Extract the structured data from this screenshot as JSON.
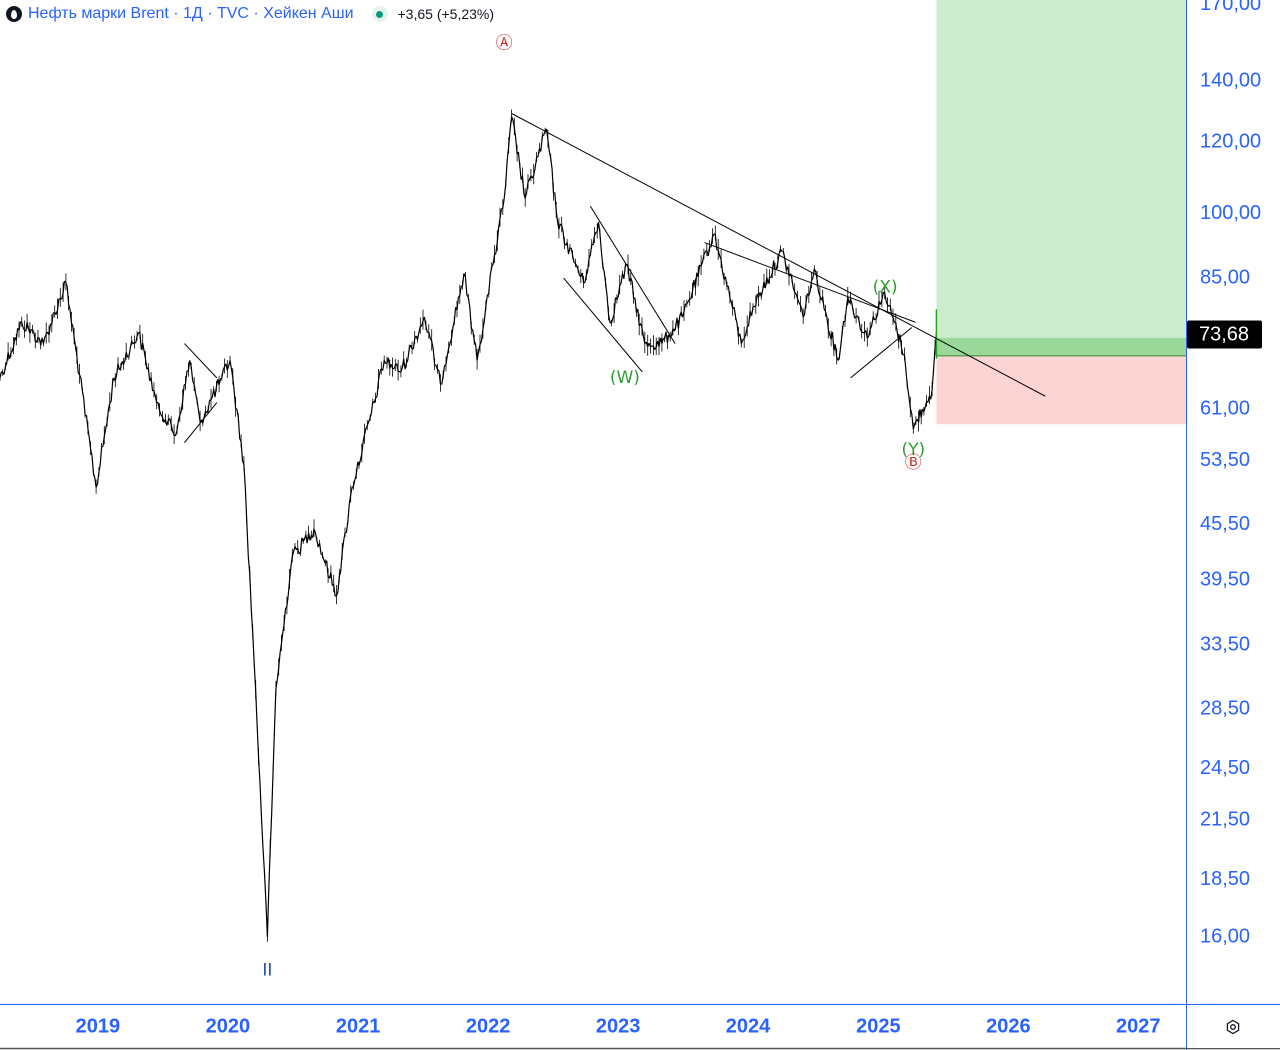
{
  "header": {
    "symbol_text": "Нефть марки Brent · 1Д · TVC · Хейкен Аши",
    "change_text": "+3,65 (+5,23%)",
    "logo_icon": "oil-drop-icon",
    "status_icon": "market-open-dot-icon"
  },
  "colors": {
    "axis_text": "#2962ff",
    "border": "#2962ff",
    "candle": "#000000",
    "profit_zone": "#cdeccd",
    "entry_band": "#9ad89a",
    "stop_zone": "#fcd4d4",
    "wave_red": "#d32f2f",
    "wave_green": "#2e9e2e",
    "wave_blue": "#1f4fa8",
    "price_label_bg": "#000000",
    "price_label_text": "#ffffff"
  },
  "chart_data": {
    "type": "line",
    "title": "",
    "xlabel": "",
    "ylabel": "",
    "y_scale": "log",
    "ylim": [
      13.5,
      172
    ],
    "xlim": [
      "2018-04-01",
      "2027-05-15"
    ],
    "grid": false,
    "x_ticks": [
      "2019",
      "2020",
      "2021",
      "2022",
      "2023",
      "2024",
      "2025",
      "2026",
      "2027"
    ],
    "y_ticks": [
      "16,00",
      "18,50",
      "21,50",
      "24,50",
      "28,50",
      "33,50",
      "39,50",
      "45,50",
      "53,50",
      "61,00",
      "85,00",
      "100,00",
      "120,00",
      "140,00",
      "170,00"
    ],
    "last_price_label": "73,68",
    "series": [
      {
        "name": "Brent",
        "x": [
          "2018-04-01",
          "2018-06-01",
          "2018-08-01",
          "2018-10-03",
          "2018-12-27",
          "2019-02-15",
          "2019-04-25",
          "2019-06-15",
          "2019-08-07",
          "2019-09-16",
          "2019-10-15",
          "2019-12-15",
          "2020-01-07",
          "2020-02-15",
          "2020-03-15",
          "2020-04-21",
          "2020-05-15",
          "2020-06-30",
          "2020-08-30",
          "2020-11-01",
          "2020-12-15",
          "2021-02-15",
          "2021-03-15",
          "2021-05-01",
          "2021-07-06",
          "2021-08-20",
          "2021-10-25",
          "2021-12-01",
          "2022-01-15",
          "2022-02-15",
          "2022-03-08",
          "2022-04-15",
          "2022-06-14",
          "2022-07-15",
          "2022-09-26",
          "2022-11-07",
          "2022-12-09",
          "2023-01-25",
          "2023-03-17",
          "2023-05-04",
          "2023-07-01",
          "2023-09-27",
          "2023-11-15",
          "2023-12-13",
          "2024-01-15",
          "2024-04-05",
          "2024-06-04",
          "2024-07-05",
          "2024-09-10",
          "2024-10-07",
          "2024-12-01",
          "2025-01-15",
          "2025-02-15",
          "2025-03-15",
          "2025-04-09",
          "2025-05-05",
          "2025-06-01",
          "2025-06-13"
        ],
        "y": [
          66,
          76,
          72,
          84,
          50,
          66,
          74,
          62,
          57,
          69,
          59,
          66,
          69,
          53,
          32,
          16,
          30,
          42,
          45,
          38,
          50,
          62,
          69,
          67,
          77,
          65,
          86,
          69,
          88,
          104,
          128,
          104,
          124,
          98,
          84,
          98,
          76,
          88,
          72,
          72,
          77,
          95,
          80,
          72,
          79,
          91,
          77,
          87,
          69,
          81,
          73,
          82,
          76,
          70,
          58,
          61,
          64,
          74
        ]
      }
    ],
    "wave_labels": [
      {
        "text": "Ⓐ",
        "x": "2022-02-15",
        "y": 154,
        "color": "red"
      },
      {
        "text": "(W)",
        "x": "2023-01-20",
        "y": 66,
        "color": "green"
      },
      {
        "text": "(X)",
        "x": "2025-01-20",
        "y": 83,
        "color": "green"
      },
      {
        "text": "(Y)",
        "x": "2025-04-09",
        "y": 55,
        "color": "green"
      },
      {
        "text": "Ⓑ",
        "x": "2025-04-09",
        "y": 53.2,
        "color": "red"
      },
      {
        "text": "II",
        "x": "2020-04-21",
        "y": 14.7,
        "color": "blue"
      }
    ],
    "trendlines": [
      {
        "x": [
          "2022-03-08",
          "2026-04-15"
        ],
        "y": [
          129,
          63
        ]
      },
      {
        "x": [
          "2023-09-01",
          "2025-04-15"
        ],
        "y": [
          93,
          76
        ]
      },
      {
        "x": [
          "2024-10-15",
          "2025-04-05"
        ],
        "y": [
          66,
          75
        ]
      },
      {
        "x": [
          "2022-10-15",
          "2023-06-10"
        ],
        "y": [
          102,
          72
        ]
      },
      {
        "x": [
          "2022-08-01",
          "2023-03-10"
        ],
        "y": [
          85,
          67
        ]
      },
      {
        "x": [
          "2019-09-01",
          "2019-12-01"
        ],
        "y": [
          72,
          66
        ]
      },
      {
        "x": [
          "2019-12-01",
          "2019-09-01"
        ],
        "y": [
          62,
          56
        ]
      }
    ],
    "long_position": {
      "start": "2025-06-13",
      "end": "2027-05-15",
      "entry": 69.8,
      "target": 172,
      "stop": 58.7
    }
  }
}
